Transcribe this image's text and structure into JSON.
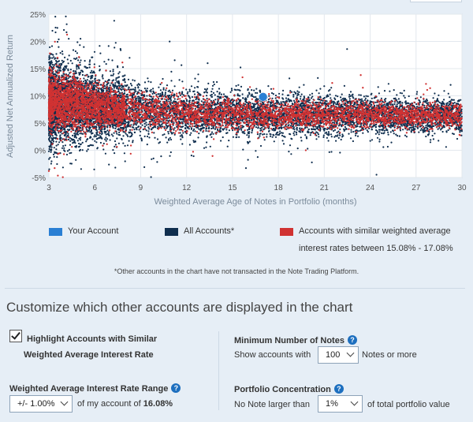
{
  "chart_data": {
    "type": "scatter",
    "xlabel": "Weighted Average Age of Notes in Portfolio (months)",
    "ylabel": "Adjusted Net Annualized Return",
    "x_ticks": [
      "3",
      "6",
      "9",
      "12",
      "15",
      "18",
      "21",
      "24",
      "27",
      "30"
    ],
    "y_ticks": [
      "25%",
      "20%",
      "15%",
      "10%",
      "5%",
      "0%",
      "-5%"
    ],
    "xlim": [
      3,
      30
    ],
    "ylim": [
      -5,
      25
    ],
    "grid": true,
    "legend_position": "bottom",
    "series": [
      {
        "name": "Your Account",
        "color": "#2a7fd4",
        "points": [
          [
            17.0,
            9.8
          ]
        ]
      },
      {
        "name": "All Accounts*",
        "color": "#0f2e4e",
        "approx_count": 9000
      },
      {
        "name": "Accounts with similar weighted average interest rates between 15.08% - 17.08%",
        "color": "#d03232",
        "approx_count": 5000
      }
    ],
    "band_profile": {
      "x": [
        3,
        4,
        6,
        9,
        12,
        15,
        18,
        21,
        24,
        27,
        30
      ],
      "center": [
        8.8,
        8.7,
        8.0,
        7.3,
        6.9,
        6.6,
        6.5,
        6.5,
        6.5,
        6.4,
        6.4
      ],
      "spread": [
        3.6,
        3.4,
        2.8,
        2.2,
        2.0,
        1.9,
        1.8,
        1.7,
        1.6,
        1.5,
        1.4
      ]
    }
  },
  "legend": {
    "your_account": "Your Account",
    "all_accounts": "All Accounts*",
    "similar_line1": "Accounts with similar weighted average",
    "similar_line2": "interest rates between 15.08% - 17.08%"
  },
  "footnote": "*Other accounts in the chart have not transacted in the Note Trading Platform.",
  "customize": {
    "title": "Customize which other accounts are displayed in the chart",
    "highlight_line1": "Highlight Accounts with Similar",
    "highlight_line2": "Weighted Average Interest Rate",
    "highlight_checked": true,
    "rate_range_label": "Weighted Average Interest Rate Range",
    "rate_range_value": "+/- 1.00%",
    "rate_suffix_text": "of my account of",
    "rate_account_value": "16.08%",
    "min_notes_label": "Minimum Number of Notes",
    "min_notes_prefix": "Show accounts with",
    "min_notes_value": "100",
    "min_notes_suffix": "Notes or more",
    "concentration_label": "Portfolio Concentration",
    "concentration_prefix": "No Note larger than",
    "concentration_value": "1%",
    "concentration_suffix": "of total portfolio value",
    "help_icon": "question-circle-icon",
    "help_glyph": "?"
  }
}
